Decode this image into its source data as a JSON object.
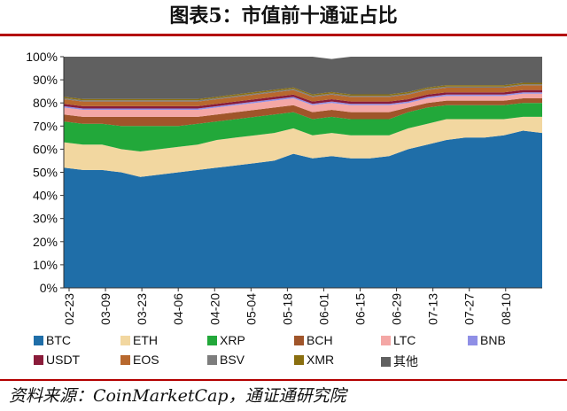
{
  "header": {
    "title": "图表5：市值前十通证占比"
  },
  "source": {
    "text": "资料来源：CoinMarketCap，通证通研究院"
  },
  "chart_data": {
    "type": "area",
    "stacked": true,
    "ylim": [
      0,
      100
    ],
    "yticks": [
      "0%",
      "10%",
      "20%",
      "30%",
      "40%",
      "50%",
      "60%",
      "70%",
      "80%",
      "90%",
      "100%"
    ],
    "x_tick_labels": [
      "02-23",
      "03-09",
      "03-23",
      "04-06",
      "04-20",
      "05-04",
      "05-18",
      "06-01",
      "06-15",
      "06-29",
      "07-13",
      "07-27",
      "08-10"
    ],
    "x": [
      "02-23",
      "03-02",
      "03-09",
      "03-16",
      "03-23",
      "03-30",
      "04-06",
      "04-13",
      "04-20",
      "04-27",
      "05-04",
      "05-11",
      "05-18",
      "05-25",
      "06-01",
      "06-08",
      "06-15",
      "06-22",
      "06-29",
      "07-06",
      "07-13",
      "07-20",
      "07-27",
      "08-03",
      "08-10",
      "08-17"
    ],
    "grid": false,
    "legend_position": "bottom",
    "series": [
      {
        "name": "BTC",
        "color": "#1f6ea8",
        "values": [
          52,
          51,
          51,
          50,
          48,
          49,
          50,
          51,
          52,
          53,
          54,
          55,
          58,
          56,
          57,
          56,
          56,
          57,
          60,
          62,
          64,
          65,
          65,
          66,
          68,
          67
        ]
      },
      {
        "name": "ETH",
        "color": "#f2d7a0",
        "values": [
          11,
          11,
          11,
          10,
          11,
          11,
          11,
          11,
          12,
          12,
          12,
          12,
          11,
          10,
          10,
          10,
          10,
          9,
          9,
          9,
          9,
          8,
          8,
          7,
          6,
          7
        ]
      },
      {
        "name": "XRP",
        "color": "#22a83a",
        "values": [
          9,
          9,
          9,
          10,
          11,
          10,
          9,
          9,
          8,
          8,
          8,
          8,
          7,
          7,
          7,
          7,
          7,
          7,
          7,
          7,
          6,
          6,
          6,
          6,
          6,
          6
        ]
      },
      {
        "name": "BCH",
        "color": "#a0552a",
        "values": [
          3,
          3,
          3,
          4,
          4,
          4,
          4,
          3,
          3,
          3,
          3,
          3,
          3,
          3,
          3,
          3,
          3,
          3,
          2,
          2,
          2,
          2,
          2,
          2,
          2,
          2
        ]
      },
      {
        "name": "LTC",
        "color": "#f4a7a5",
        "values": [
          3,
          3,
          3,
          3,
          3,
          3,
          3,
          3,
          3,
          3,
          3,
          3,
          3,
          3,
          3,
          3,
          3,
          3,
          2,
          2,
          2,
          2,
          2,
          2,
          2,
          2
        ]
      },
      {
        "name": "BNB",
        "color": "#8f8fe6",
        "values": [
          0.6,
          0.6,
          0.6,
          0.6,
          0.6,
          0.6,
          0.6,
          0.6,
          0.6,
          0.6,
          0.6,
          0.6,
          0.6,
          0.6,
          0.6,
          0.6,
          0.6,
          0.6,
          0.6,
          0.6,
          0.6,
          0.6,
          0.6,
          0.6,
          0.6,
          0.6
        ]
      },
      {
        "name": "USDT",
        "color": "#8a1c3a",
        "values": [
          1,
          1,
          1,
          1,
          1,
          1,
          1,
          1,
          1,
          1,
          1,
          1,
          1,
          1,
          1,
          1,
          1,
          1,
          1,
          1,
          1,
          1,
          1,
          1,
          1,
          1
        ]
      },
      {
        "name": "EOS",
        "color": "#b8682e",
        "values": [
          2,
          2,
          2,
          2,
          2,
          2,
          2,
          2,
          2,
          2,
          2,
          2,
          2,
          2,
          2,
          2,
          2,
          2,
          2,
          2,
          2,
          2,
          2,
          2,
          2,
          2
        ]
      },
      {
        "name": "BSV",
        "color": "#7d7d7d",
        "values": [
          0.5,
          0.5,
          0.5,
          0.5,
          0.5,
          0.5,
          0.5,
          0.5,
          0.5,
          0.5,
          0.5,
          0.5,
          0.5,
          0.5,
          0.5,
          0.5,
          0.5,
          0.5,
          0.5,
          0.5,
          0.5,
          0.5,
          0.5,
          0.5,
          0.5,
          0.5
        ]
      },
      {
        "name": "XMR",
        "color": "#8a6f10",
        "values": [
          0.6,
          0.6,
          0.6,
          0.6,
          0.6,
          0.6,
          0.6,
          0.6,
          0.6,
          0.6,
          0.6,
          0.6,
          0.6,
          0.6,
          0.6,
          0.6,
          0.6,
          0.6,
          0.6,
          0.6,
          0.6,
          0.6,
          0.6,
          0.6,
          0.6,
          0.6
        ]
      },
      {
        "name": "其他",
        "color": "#606060",
        "values": [
          17.3,
          18.3,
          18.3,
          18.3,
          18.3,
          18.3,
          18.3,
          18.3,
          17.3,
          16.3,
          15.3,
          14.3,
          13.3,
          16.3,
          14.3,
          16.3,
          16.3,
          16.3,
          15.3,
          13.3,
          12.3,
          12.3,
          12.3,
          12.3,
          11.3,
          11.3
        ]
      }
    ]
  }
}
